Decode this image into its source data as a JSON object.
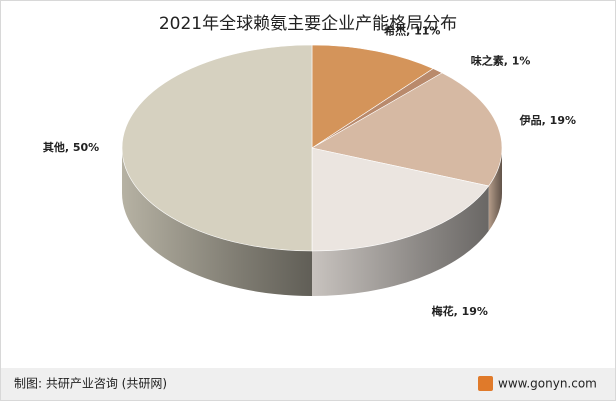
{
  "chart_data": {
    "type": "pie3d",
    "title": "2021年全球赖氨主要企业产能格局分布",
    "values": [
      11,
      1,
      19,
      19,
      50
    ],
    "value_labels": [
      "希杰, 11%",
      "味之素, 1%",
      "伊品, 19%",
      "梅花, 19%",
      "其他, 50%"
    ],
    "colors": [
      "#d4945a",
      "#b98a6c",
      "#d6b9a3",
      "#ebe5e0",
      "#d6d1c0"
    ]
  },
  "footer": {
    "source": "制图: 共研产业咨询 (共研网)",
    "site": "www.gonyn.com"
  }
}
